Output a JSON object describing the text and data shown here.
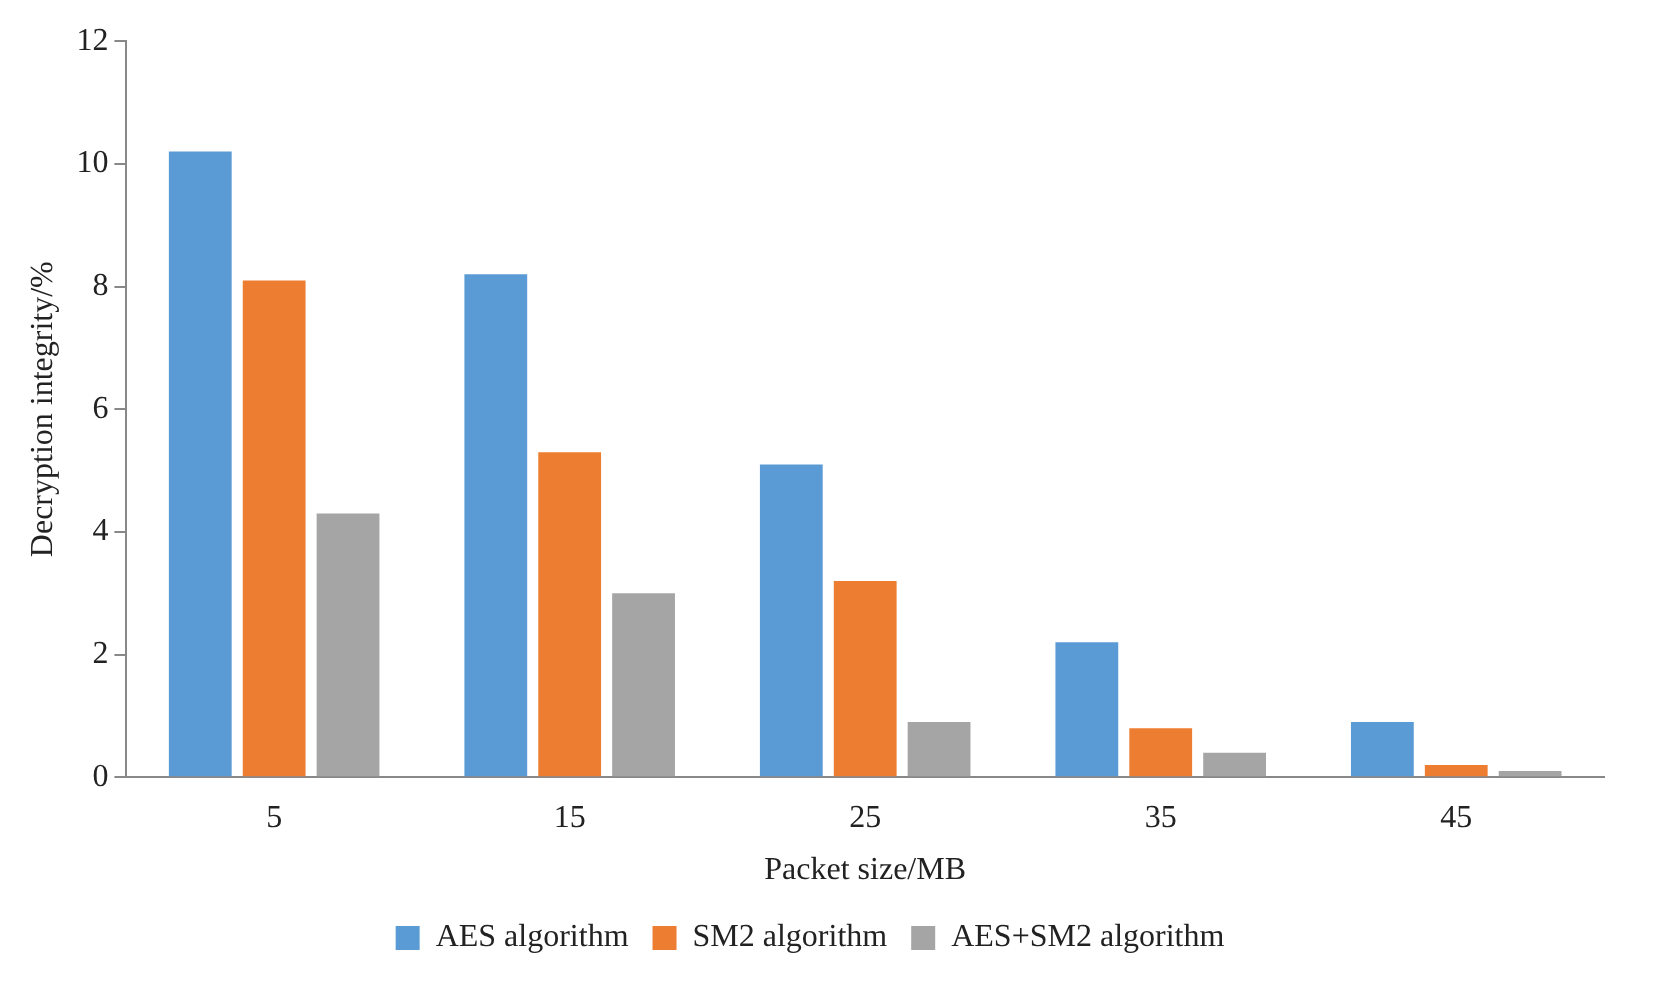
{
  "chart_data": {
    "type": "bar",
    "xlabel": "Packet size/MB",
    "ylabel": "Decryption integrity/%",
    "categories": [
      "5",
      "15",
      "25",
      "35",
      "45"
    ],
    "series": [
      {
        "name": "AES algorithm",
        "color": "#5b9bd5",
        "values": [
          10.2,
          8.2,
          5.1,
          2.2,
          0.9
        ]
      },
      {
        "name": "SM2 algorithm",
        "color": "#ed7d31",
        "values": [
          8.1,
          5.3,
          3.2,
          0.8,
          0.2
        ]
      },
      {
        "name": "AES+SM2 algorithm",
        "color": "#a5a5a5",
        "values": [
          4.3,
          3.0,
          0.9,
          0.4,
          0.1
        ]
      }
    ],
    "ylim": [
      0,
      12
    ],
    "yticks": [
      0,
      2,
      4,
      6,
      8,
      10,
      12
    ],
    "grid": false,
    "legend": "bottom"
  }
}
